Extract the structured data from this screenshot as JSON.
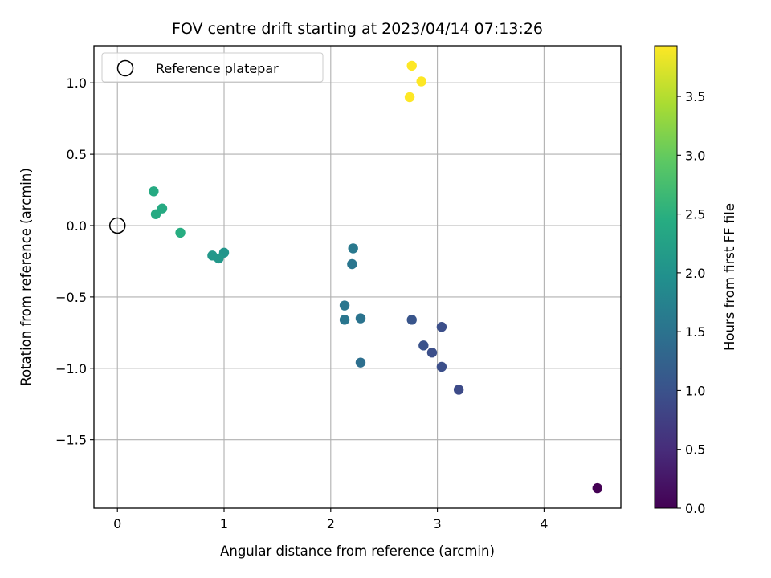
{
  "chart_data": {
    "type": "scatter",
    "title": "FOV centre drift starting at 2023/04/14 07:13:26",
    "xlabel": "Angular distance from reference (arcmin)",
    "ylabel": "Rotation from reference (arcmin)",
    "xlim": [
      -0.22,
      4.72
    ],
    "ylim": [
      -1.98,
      1.26
    ],
    "xticks": [
      0,
      1,
      2,
      3,
      4
    ],
    "yticks": [
      -1.5,
      -1.0,
      -0.5,
      0.0,
      0.5,
      1.0
    ],
    "xtick_labels": [
      "0",
      "1",
      "2",
      "3",
      "4"
    ],
    "ytick_labels": [
      "−1.5",
      "−1.0",
      "−0.5",
      "0.0",
      "0.5",
      "1.0"
    ],
    "grid": true,
    "colormap": "viridis",
    "colorbar": {
      "label": "Hours from first FF file",
      "range": [
        0.0,
        3.93
      ],
      "ticks": [
        0.0,
        0.5,
        1.0,
        1.5,
        2.0,
        2.5,
        3.0,
        3.5
      ],
      "tick_labels": [
        "0.0",
        "0.5",
        "1.0",
        "1.5",
        "2.0",
        "2.5",
        "3.0",
        "3.5"
      ]
    },
    "legend": {
      "placement": "upper-left",
      "entries": [
        {
          "label": "Reference platepar",
          "marker": "open-circle"
        }
      ]
    },
    "reference_point": {
      "x": 0,
      "y": 0
    },
    "points": [
      {
        "x": 4.5,
        "y": -1.84,
        "hours": 0.0
      },
      {
        "x": 3.2,
        "y": -1.15,
        "hours": 0.9
      },
      {
        "x": 3.04,
        "y": -0.99,
        "hours": 0.95
      },
      {
        "x": 2.95,
        "y": -0.89,
        "hours": 0.95
      },
      {
        "x": 2.87,
        "y": -0.84,
        "hours": 1.0
      },
      {
        "x": 3.04,
        "y": -0.71,
        "hours": 0.95
      },
      {
        "x": 2.76,
        "y": -0.66,
        "hours": 1.05
      },
      {
        "x": 2.28,
        "y": -0.96,
        "hours": 1.45
      },
      {
        "x": 2.28,
        "y": -0.65,
        "hours": 1.5
      },
      {
        "x": 2.13,
        "y": -0.66,
        "hours": 1.55
      },
      {
        "x": 2.13,
        "y": -0.56,
        "hours": 1.55
      },
      {
        "x": 2.2,
        "y": -0.27,
        "hours": 1.55
      },
      {
        "x": 2.21,
        "y": -0.16,
        "hours": 1.6
      },
      {
        "x": 1.0,
        "y": -0.19,
        "hours": 2.05
      },
      {
        "x": 0.95,
        "y": -0.23,
        "hours": 2.1
      },
      {
        "x": 0.89,
        "y": -0.21,
        "hours": 2.1
      },
      {
        "x": 0.59,
        "y": -0.05,
        "hours": 2.45
      },
      {
        "x": 0.42,
        "y": 0.12,
        "hours": 2.4
      },
      {
        "x": 0.36,
        "y": 0.08,
        "hours": 2.4
      },
      {
        "x": 0.34,
        "y": 0.24,
        "hours": 2.4
      },
      {
        "x": 2.74,
        "y": 0.9,
        "hours": 3.93
      },
      {
        "x": 2.85,
        "y": 1.01,
        "hours": 3.93
      },
      {
        "x": 2.76,
        "y": 1.12,
        "hours": 3.93
      }
    ]
  }
}
